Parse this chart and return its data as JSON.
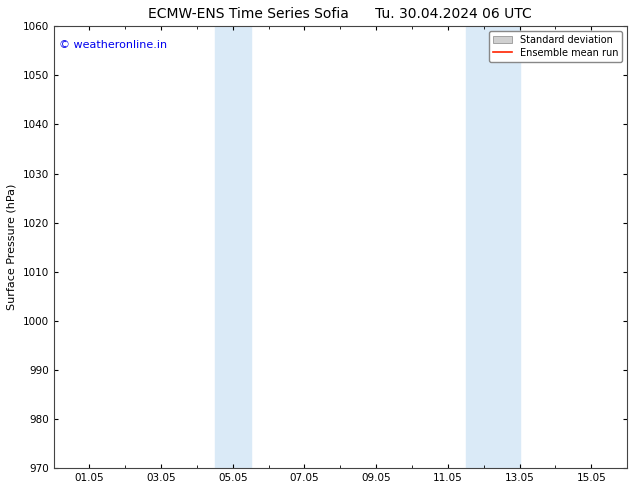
{
  "title_left": "ECMW-ENS Time Series Sofia",
  "title_right": "Tu. 30.04.2024 06 UTC",
  "ylabel": "Surface Pressure (hPa)",
  "ylim": [
    970,
    1060
  ],
  "yticks": [
    970,
    980,
    990,
    1000,
    1010,
    1020,
    1030,
    1040,
    1050,
    1060
  ],
  "xtick_labels": [
    "01.05",
    "03.05",
    "05.05",
    "07.05",
    "09.05",
    "11.05",
    "13.05",
    "15.05"
  ],
  "xtick_positions": [
    1,
    3,
    5,
    7,
    9,
    11,
    13,
    15
  ],
  "xlim": [
    0,
    16
  ],
  "shaded_bands": [
    {
      "x_start": 4.5,
      "x_end": 5.5
    },
    {
      "x_start": 11.5,
      "x_end": 13.0
    }
  ],
  "shaded_color": "#daeaf7",
  "watermark_text": "© weatheronline.in",
  "watermark_color": "#0000ee",
  "watermark_fontsize": 8,
  "legend_std_label": "Standard deviation",
  "legend_mean_label": "Ensemble mean run",
  "legend_std_color": "#d0d0d0",
  "legend_mean_color": "#ff2200",
  "background_color": "#ffffff",
  "title_fontsize": 10,
  "ylabel_fontsize": 8,
  "tick_fontsize": 7.5,
  "axis_color": "#000000",
  "spine_color": "#444444"
}
